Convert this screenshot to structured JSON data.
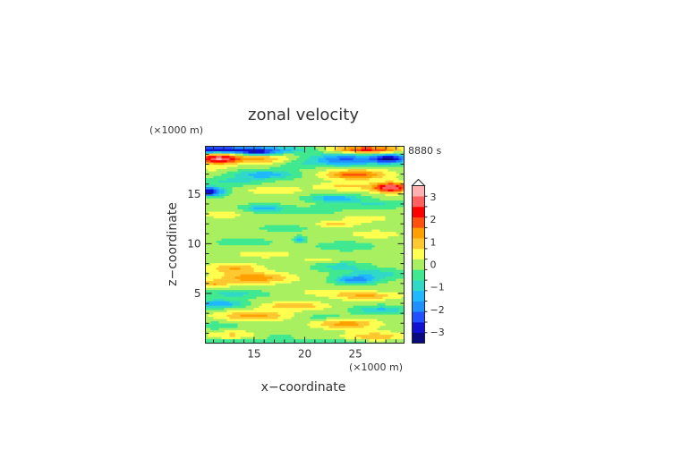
{
  "chart_data": {
    "type": "heatmap",
    "title": "zonal velocity",
    "xlabel": "x−coordinate",
    "ylabel": "z−coordinate",
    "x_unit": "(×1000 m)",
    "y_unit": "(×1000 m)",
    "time_label": "8880 s",
    "xlim": [
      10.2,
      29.8
    ],
    "ylim": [
      0,
      19.8
    ],
    "x_ticks": [
      15,
      20,
      25
    ],
    "x_tick_labels": [
      "15",
      "20",
      "25"
    ],
    "y_ticks": [
      5,
      10,
      15
    ],
    "y_tick_labels": [
      "5",
      "10",
      "15"
    ],
    "colorbar": {
      "min": -3.5,
      "max": 3.5,
      "step": 0.5,
      "tick_values": [
        3,
        2,
        1,
        0,
        -1,
        -2,
        -3
      ],
      "tick_labels": [
        "3",
        "2",
        "1",
        "0",
        "−1",
        "−2",
        "−3"
      ],
      "colors": [
        "#0a0a80",
        "#1010d0",
        "#2050ff",
        "#1e90ff",
        "#20b8ff",
        "#30d8c8",
        "#40e890",
        "#a8f060",
        "#ffff50",
        "#ffc830",
        "#ffa000",
        "#ff5010",
        "#ff0000",
        "#ff6060",
        "#ffb0b0"
      ]
    },
    "background_level": 0.2,
    "features": [
      {
        "x": 10.5,
        "z": 19.5,
        "sx": 8,
        "sz": 0.35,
        "v": -3.2
      },
      {
        "x": 26,
        "z": 19.5,
        "sx": 3.5,
        "sz": 0.35,
        "v": 2.6
      },
      {
        "x": 15.5,
        "z": 19.2,
        "sx": 2,
        "sz": 0.3,
        "v": -2.0
      },
      {
        "x": 28.5,
        "z": 18.6,
        "sx": 1.8,
        "sz": 0.45,
        "v": -3.0
      },
      {
        "x": 11.5,
        "z": 18.6,
        "sx": 2.2,
        "sz": 0.5,
        "v": 3.3
      },
      {
        "x": 16,
        "z": 18.6,
        "sx": 2.5,
        "sz": 0.5,
        "v": 1.3
      },
      {
        "x": 24,
        "z": 18.5,
        "sx": 3.5,
        "sz": 0.6,
        "v": -2.3
      },
      {
        "x": 19,
        "z": 18.0,
        "sx": 2,
        "sz": 0.4,
        "v": -0.5
      },
      {
        "x": 11,
        "z": 17.6,
        "sx": 2,
        "sz": 0.4,
        "v": 0.4
      },
      {
        "x": 16,
        "z": 17.0,
        "sx": 3,
        "sz": 0.45,
        "v": -1.6
      },
      {
        "x": 25,
        "z": 17.0,
        "sx": 3,
        "sz": 0.5,
        "v": 2.1
      },
      {
        "x": 13,
        "z": 16.3,
        "sx": 2.5,
        "sz": 0.4,
        "v": -0.9
      },
      {
        "x": 28.5,
        "z": 15.7,
        "sx": 1.8,
        "sz": 0.5,
        "v": 3.2
      },
      {
        "x": 24,
        "z": 15.8,
        "sx": 3,
        "sz": 0.4,
        "v": 0.9
      },
      {
        "x": 10.5,
        "z": 15.3,
        "sx": 1.5,
        "sz": 0.45,
        "v": -3.2
      },
      {
        "x": 17,
        "z": 15.4,
        "sx": 2.5,
        "sz": 0.4,
        "v": 0.8
      },
      {
        "x": 23,
        "z": 14.6,
        "sx": 2.5,
        "sz": 0.4,
        "v": -1.6
      },
      {
        "x": 27,
        "z": 14.0,
        "sx": 3,
        "sz": 0.4,
        "v": -0.8
      },
      {
        "x": 16,
        "z": 13.6,
        "sx": 2,
        "sz": 0.4,
        "v": -1.5
      },
      {
        "x": 21,
        "z": 13.4,
        "sx": 2.5,
        "sz": 0.4,
        "v": -0.6
      },
      {
        "x": 12,
        "z": 13.0,
        "sx": 2.5,
        "sz": 0.5,
        "v": 0.5
      },
      {
        "x": 26,
        "z": 12.6,
        "sx": 2.5,
        "sz": 0.4,
        "v": 0.6
      },
      {
        "x": 23,
        "z": 12.0,
        "sx": 2,
        "sz": 0.3,
        "v": 1.0
      },
      {
        "x": 18,
        "z": 11.6,
        "sx": 3,
        "sz": 0.4,
        "v": -0.4
      },
      {
        "x": 27,
        "z": 11.0,
        "sx": 2.5,
        "sz": 0.4,
        "v": 0.7
      },
      {
        "x": 19.5,
        "z": 10.5,
        "sx": 0.5,
        "sz": 0.3,
        "v": -1.6
      },
      {
        "x": 14,
        "z": 10.2,
        "sx": 3,
        "sz": 0.4,
        "v": -0.5
      },
      {
        "x": 24,
        "z": 9.8,
        "sx": 3,
        "sz": 0.5,
        "v": -0.5
      },
      {
        "x": 16,
        "z": 9.0,
        "sx": 3,
        "sz": 0.4,
        "v": 0.6
      },
      {
        "x": 22,
        "z": 8.4,
        "sx": 3,
        "sz": 0.4,
        "v": 0.5
      },
      {
        "x": 13,
        "z": 7.6,
        "sx": 2.5,
        "sz": 0.5,
        "v": 1.3
      },
      {
        "x": 23.5,
        "z": 7.8,
        "sx": 2.5,
        "sz": 0.5,
        "v": -1.0
      },
      {
        "x": 27,
        "z": 7.0,
        "sx": 3,
        "sz": 0.5,
        "v": -1.0
      },
      {
        "x": 15,
        "z": 6.6,
        "sx": 3.5,
        "sz": 0.55,
        "v": 1.7
      },
      {
        "x": 25,
        "z": 6.4,
        "sx": 2,
        "sz": 0.4,
        "v": -2.0
      },
      {
        "x": 11,
        "z": 6.0,
        "sx": 1.5,
        "sz": 0.4,
        "v": 1.2
      },
      {
        "x": 13,
        "z": 5.0,
        "sx": 3,
        "sz": 0.4,
        "v": -0.9
      },
      {
        "x": 22,
        "z": 5.2,
        "sx": 3,
        "sz": 0.4,
        "v": 0.5
      },
      {
        "x": 26,
        "z": 4.8,
        "sx": 3,
        "sz": 0.4,
        "v": 1.4
      },
      {
        "x": 11.5,
        "z": 4.0,
        "sx": 2.5,
        "sz": 0.4,
        "v": -1.7
      },
      {
        "x": 19,
        "z": 3.8,
        "sx": 3,
        "sz": 0.4,
        "v": 1.3
      },
      {
        "x": 27.5,
        "z": 3.4,
        "sx": 2.5,
        "sz": 0.4,
        "v": -1.3
      },
      {
        "x": 15,
        "z": 2.8,
        "sx": 3.5,
        "sz": 0.5,
        "v": 1.5
      },
      {
        "x": 22,
        "z": 2.6,
        "sx": 3,
        "sz": 0.4,
        "v": -0.5
      },
      {
        "x": 24,
        "z": 2.0,
        "sx": 3,
        "sz": 0.5,
        "v": 1.6
      },
      {
        "x": 11.5,
        "z": 1.8,
        "sx": 2,
        "sz": 0.4,
        "v": -0.6
      },
      {
        "x": 13,
        "z": 0.9,
        "sx": 2.5,
        "sz": 0.4,
        "v": 0.9
      },
      {
        "x": 17,
        "z": 0.8,
        "sx": 2.5,
        "sz": 0.4,
        "v": -0.3
      },
      {
        "x": 27,
        "z": 0.7,
        "sx": 3,
        "sz": 0.5,
        "v": 1.2
      },
      {
        "x": 20,
        "z": 0.2,
        "sx": 12,
        "sz": 0.25,
        "v": -0.7
      }
    ]
  }
}
